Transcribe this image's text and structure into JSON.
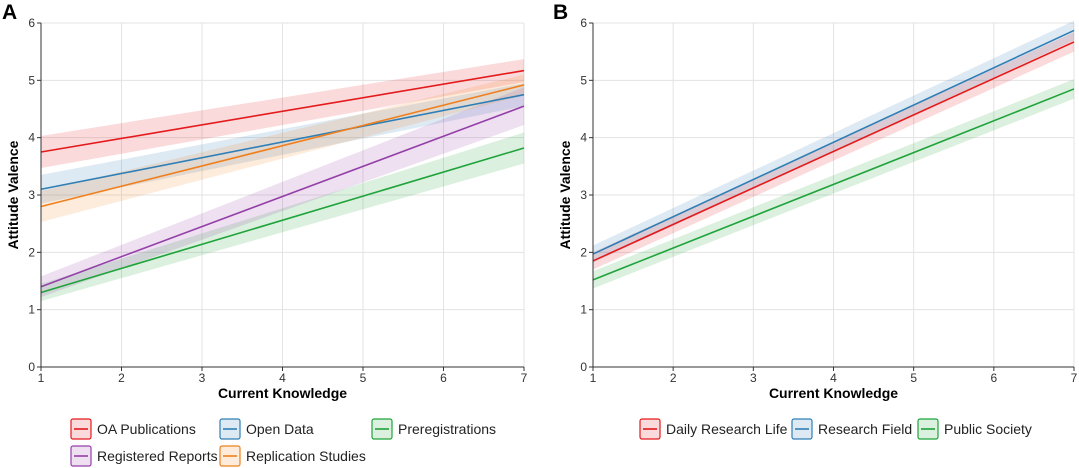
{
  "chart_data": [
    {
      "panel_label": "A",
      "type": "line",
      "xlabel": "Current Knowledge",
      "ylabel": "Attitude Valence",
      "xlim": [
        1,
        7
      ],
      "ylim": [
        0,
        6
      ],
      "x_ticks": [
        "1",
        "2",
        "3",
        "4",
        "5",
        "6",
        "7"
      ],
      "y_ticks": [
        "0",
        "1",
        "2",
        "3",
        "4",
        "5",
        "6"
      ],
      "grid": true,
      "legend_position": "bottom",
      "series": [
        {
          "name": "OA Publications",
          "color": "#e41a1c",
          "x": [
            1,
            7
          ],
          "y": [
            3.75,
            5.17
          ],
          "band_halfwidth": [
            0.28,
            0.2
          ]
        },
        {
          "name": "Open Data",
          "color": "#2f7fb6",
          "x": [
            1,
            7
          ],
          "y": [
            3.1,
            4.75
          ],
          "band_halfwidth": [
            0.25,
            0.2
          ]
        },
        {
          "name": "Preregistrations",
          "color": "#1fa33a",
          "x": [
            1,
            7
          ],
          "y": [
            1.3,
            3.82
          ],
          "band_halfwidth": [
            0.15,
            0.27
          ]
        },
        {
          "name": "Registered Reports",
          "color": "#9440a8",
          "x": [
            1,
            7
          ],
          "y": [
            1.4,
            4.55
          ],
          "band_halfwidth": [
            0.18,
            0.33
          ]
        },
        {
          "name": "Replication Studies",
          "color": "#f0801f",
          "x": [
            1,
            7
          ],
          "y": [
            2.8,
            4.92
          ],
          "band_halfwidth": [
            0.27,
            0.18
          ]
        }
      ]
    },
    {
      "panel_label": "B",
      "type": "line",
      "xlabel": "Current Knowledge",
      "ylabel": "Attitude Valence",
      "xlim": [
        1,
        7
      ],
      "ylim": [
        0,
        6
      ],
      "x_ticks": [
        "1",
        "2",
        "3",
        "4",
        "5",
        "6",
        "7"
      ],
      "y_ticks": [
        "0",
        "1",
        "2",
        "3",
        "4",
        "5",
        "6"
      ],
      "grid": true,
      "legend_position": "bottom",
      "series": [
        {
          "name": "Daily Research Life",
          "color": "#e41a1c",
          "x": [
            1,
            7
          ],
          "y": [
            1.85,
            5.67
          ],
          "band_halfwidth": [
            0.15,
            0.17
          ]
        },
        {
          "name": "Research Field",
          "color": "#2f7fb6",
          "x": [
            1,
            7
          ],
          "y": [
            1.97,
            5.87
          ],
          "band_halfwidth": [
            0.15,
            0.17
          ]
        },
        {
          "name": "Public Society",
          "color": "#1fa33a",
          "x": [
            1,
            7
          ],
          "y": [
            1.52,
            4.85
          ],
          "band_halfwidth": [
            0.15,
            0.17
          ]
        }
      ]
    }
  ]
}
